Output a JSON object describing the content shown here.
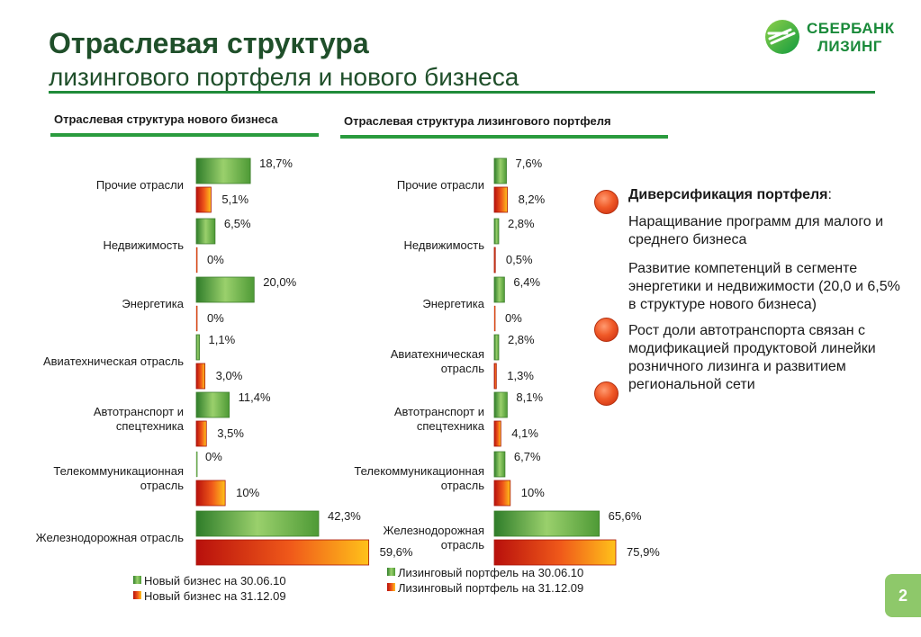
{
  "header": {
    "title_line1": "Отраслевая структура",
    "title_line2": "лизингового портфеля и нового бизнеса"
  },
  "logo": {
    "line1": "СБЕРБАНК",
    "line2": "ЛИЗИНГ",
    "icon": "sberbank-logo-icon"
  },
  "colors": {
    "accent_green": "#2a9b3e",
    "series_green": "#5aa03a",
    "series_red": "#e8401a"
  },
  "chart_data": [
    {
      "type": "bar",
      "orientation": "horizontal",
      "title": "Отраслевая структура нового бизнеса",
      "categories": [
        "Прочие отрасли",
        "Недвижимость",
        "Энергетика",
        "Авиатехническая отрасль",
        "Автотранспорт и спецтехника",
        "Телекоммуникационная отрасль",
        "Железнодорожная отрасль"
      ],
      "series": [
        {
          "name": "Новый бизнес на 30.06.10",
          "values": [
            18.7,
            6.5,
            20.0,
            1.1,
            11.4,
            0,
            42.3
          ],
          "labels": [
            "18,7%",
            "6,5%",
            "20,0%",
            "1,1%",
            "11,4%",
            "0%",
            "42,3%"
          ]
        },
        {
          "name": "Новый бизнес на 31.12.09",
          "values": [
            5.1,
            0,
            0,
            3.0,
            3.5,
            10,
            59.6
          ],
          "labels": [
            "5,1%",
            "0%",
            "0%",
            "3,0%",
            "3,5%",
            "10%",
            "59,6%"
          ]
        }
      ]
    },
    {
      "type": "bar",
      "orientation": "horizontal",
      "title": "Отраслевая структура лизингового портфеля",
      "categories": [
        "Прочие отрасли",
        "Недвижимость",
        "Энергетика",
        "Авиатехническая отрасль",
        "Автотранспорт и спецтехника",
        "Телекоммуникационная отрасль",
        "Железнодорожная отрасль"
      ],
      "series": [
        {
          "name": "Лизинговый портфель на 30.06.10",
          "values": [
            7.6,
            2.8,
            6.4,
            2.8,
            8.1,
            6.7,
            65.6
          ],
          "labels": [
            "7,6%",
            "2,8%",
            "6,4%",
            "2,8%",
            "8,1%",
            "6,7%",
            "65,6%"
          ]
        },
        {
          "name": "Лизинговый портфель на 31.12.09",
          "values": [
            8.2,
            0.5,
            0,
            1.3,
            4.1,
            10,
            75.9
          ],
          "labels": [
            "8,2%",
            "0,5%",
            "0%",
            "1,3%",
            "4,1%",
            "10%",
            "75,9%"
          ]
        }
      ]
    }
  ],
  "bullets": {
    "heading": "Диверсификация портфеля",
    "heading_colon": ":",
    "items": [
      "Наращивание программ для малого и среднего бизнеса",
      "Развитие компетенций в сегменте энергетики и недвижимости (20,0 и 6,5% в структуре нового бизнеса)",
      "Рост доли автотранспорта связан с модификацией продуктовой линейки розничного лизинга и развитием региональной сети"
    ]
  },
  "page_number": "2"
}
